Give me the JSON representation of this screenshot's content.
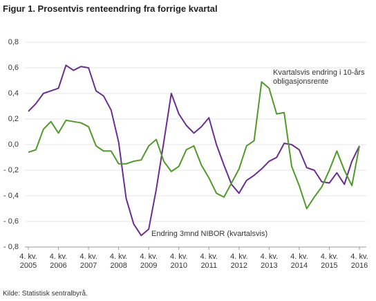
{
  "chart_data": {
    "type": "line",
    "title": "Figur 1. Prosentvis renteendring fra forrige kvartal",
    "source": "Kilde: Statistisk sentralbyrå.",
    "categories": [
      "4. kv. 2005",
      null,
      null,
      null,
      "4. kv. 2006",
      null,
      null,
      null,
      "4. kv. 2007",
      null,
      null,
      null,
      "4. kv. 2008",
      null,
      null,
      null,
      "4. kv. 2009",
      null,
      null,
      null,
      "4. kv. 2010",
      null,
      null,
      null,
      "4. kv. 2011",
      null,
      null,
      null,
      "4. kv. 2012",
      null,
      null,
      null,
      "4. kv. 2013",
      null,
      null,
      null,
      "4. kv. 2014",
      null,
      null,
      null,
      "4. kv. 2015",
      null,
      null,
      null,
      "4. kv. 2016"
    ],
    "series": [
      {
        "name": "Endring 3mnd NIBOR (kvartalsvis)",
        "color": "#6a2c91",
        "values": [
          0.26,
          0.32,
          0.4,
          0.42,
          0.44,
          0.62,
          0.58,
          0.61,
          0.6,
          0.42,
          0.38,
          0.27,
          0.02,
          -0.42,
          -0.62,
          -0.71,
          -0.66,
          -0.35,
          0.02,
          0.4,
          0.24,
          0.15,
          0.09,
          0.14,
          0.21,
          0.0,
          -0.16,
          -0.31,
          -0.38,
          -0.28,
          -0.24,
          -0.19,
          -0.13,
          -0.1,
          0.01,
          0.0,
          -0.04,
          -0.18,
          -0.2,
          -0.29,
          -0.3,
          -0.22,
          -0.31,
          -0.13,
          -0.01
        ]
      },
      {
        "name": "Kvartalsvis endring i 10-års obligasjonsrente",
        "color": "#4e9a26",
        "values": [
          -0.06,
          -0.04,
          0.12,
          0.18,
          0.09,
          0.19,
          0.18,
          0.17,
          0.14,
          -0.01,
          -0.05,
          -0.05,
          -0.15,
          -0.15,
          -0.13,
          -0.12,
          -0.01,
          0.04,
          -0.13,
          -0.21,
          -0.17,
          -0.04,
          -0.01,
          -0.16,
          -0.26,
          -0.38,
          -0.41,
          -0.3,
          -0.19,
          -0.01,
          0.03,
          0.49,
          0.44,
          0.24,
          0.25,
          -0.17,
          -0.32,
          -0.5,
          -0.41,
          -0.33,
          -0.2,
          -0.05,
          -0.2,
          -0.32,
          -0.01
        ]
      }
    ],
    "ylim": [
      -0.8,
      0.8
    ],
    "yticks": [
      {
        "value": -0.8,
        "label": "- 0,8"
      },
      {
        "value": -0.6,
        "label": "- 0,6"
      },
      {
        "value": -0.4,
        "label": "- 0,4"
      },
      {
        "value": -0.2,
        "label": "- 0,2"
      },
      {
        "value": 0,
        "label": "0,0"
      },
      {
        "value": 0.2,
        "label": "0,2"
      },
      {
        "value": 0.4,
        "label": "0,4"
      },
      {
        "value": 0.6,
        "label": "0,6"
      },
      {
        "value": 0.8,
        "label": "0,8"
      }
    ],
    "grid": true
  }
}
